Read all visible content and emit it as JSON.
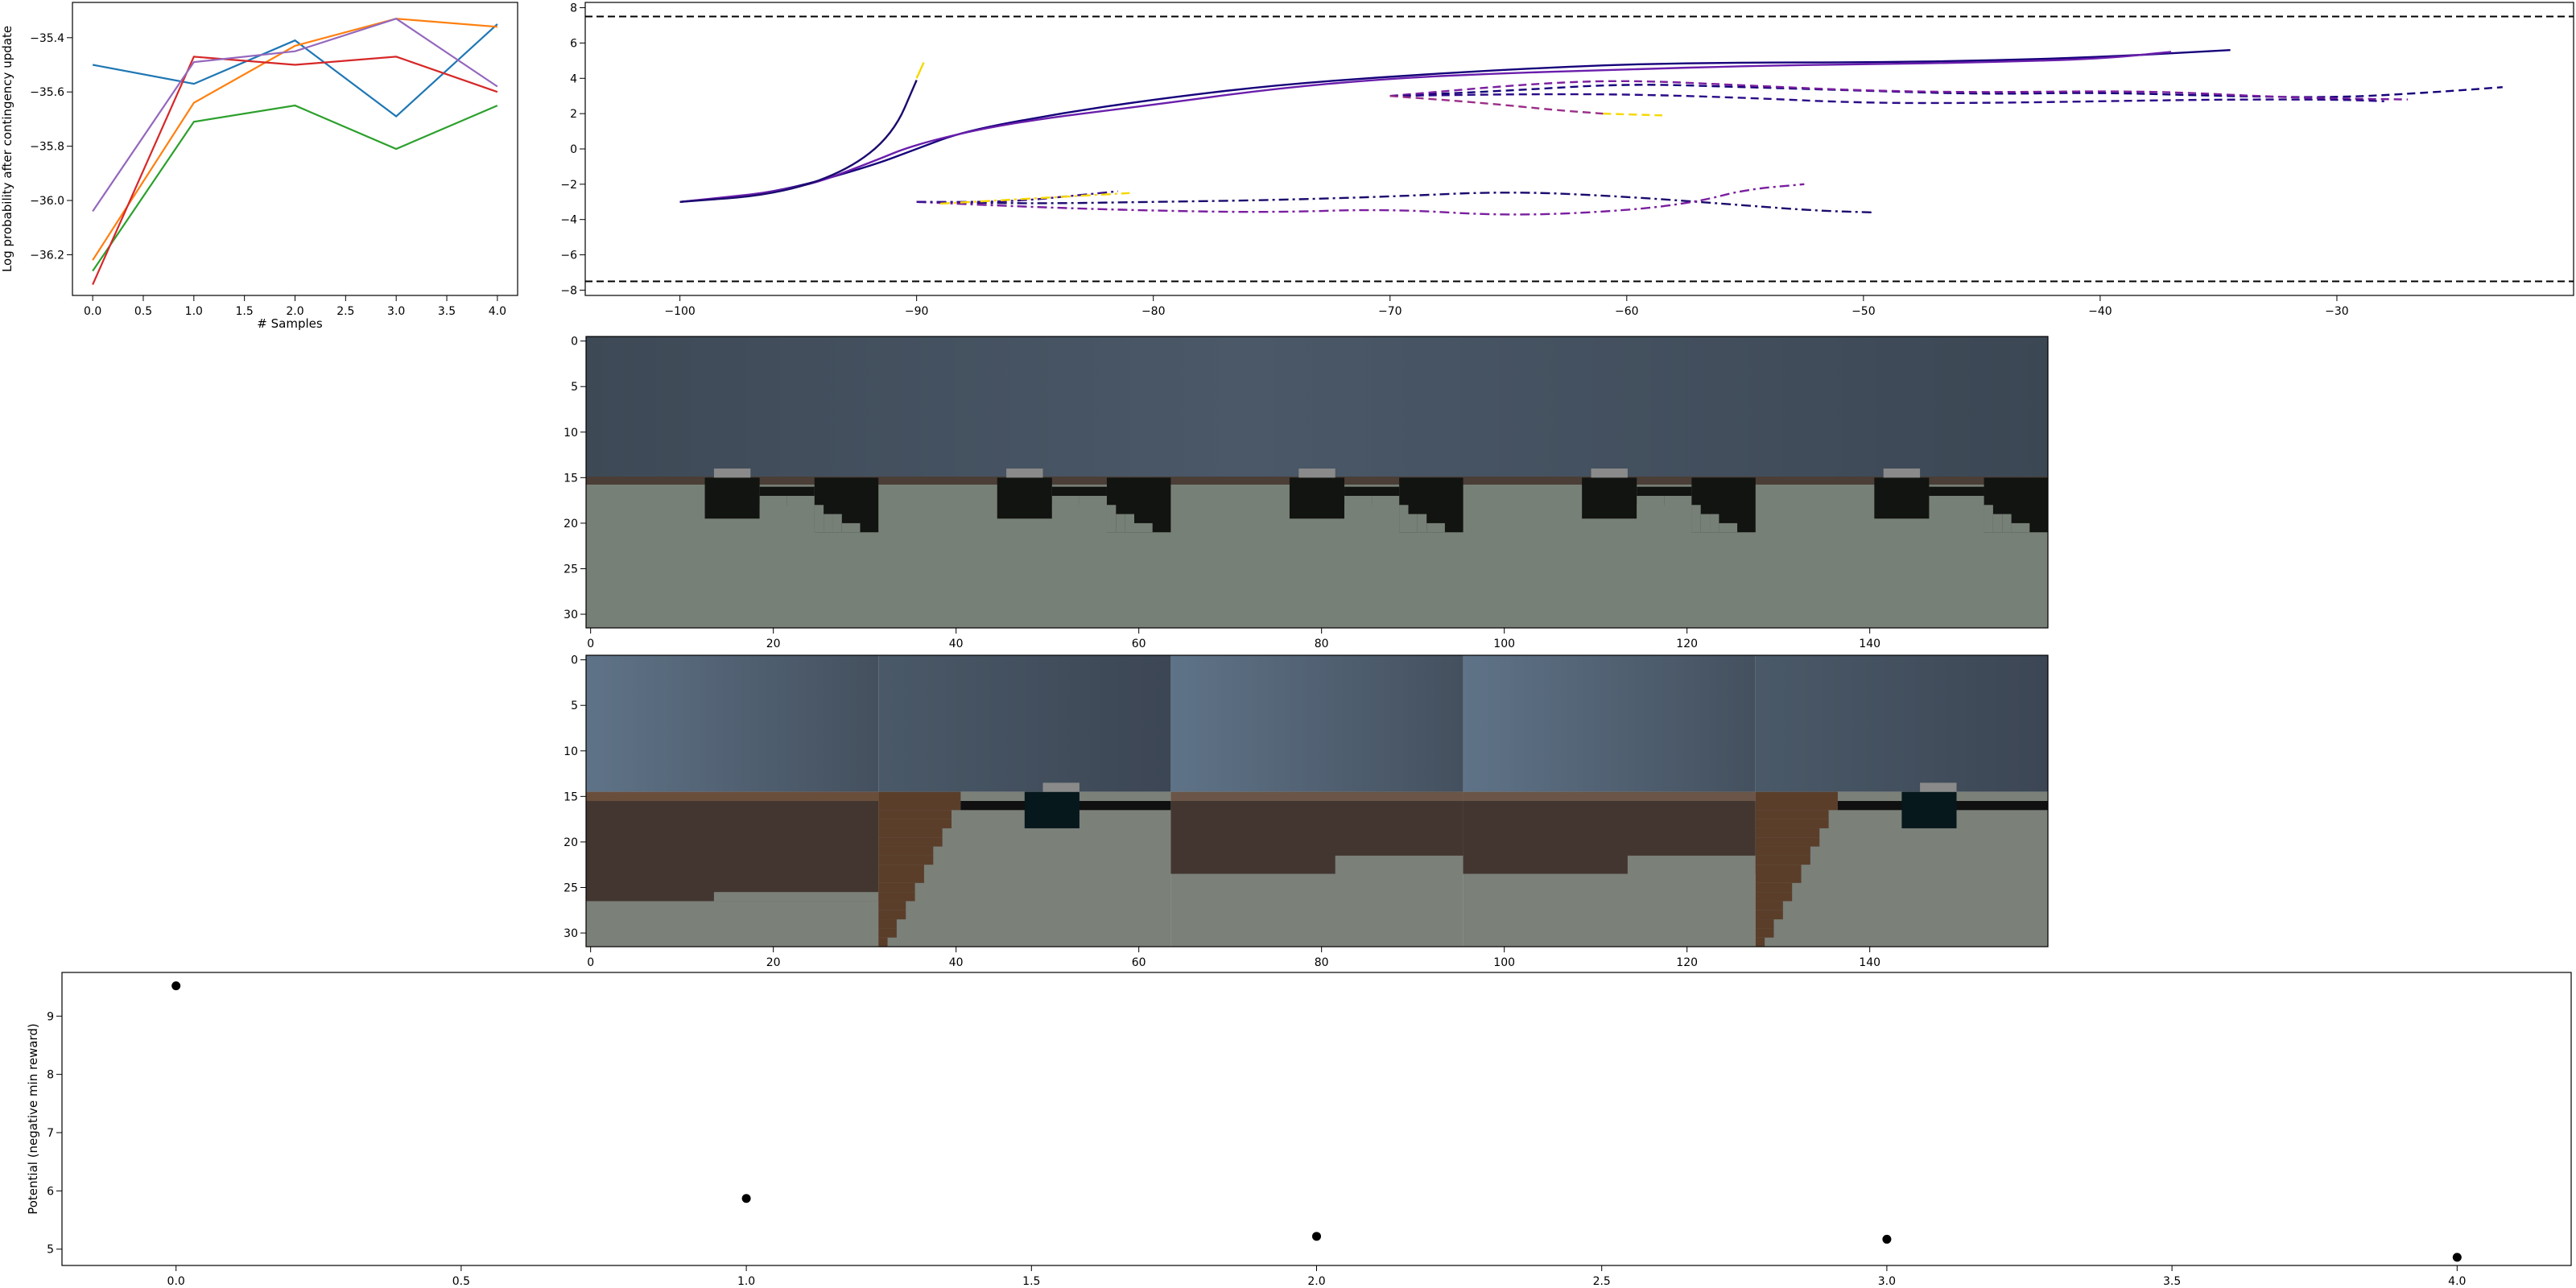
{
  "chart_data": [
    {
      "type": "line",
      "xlabel": "# Samples",
      "ylabel": "Log probability after contingency update",
      "xlim": [
        -0.2,
        4.2
      ],
      "ylim": [
        -36.35,
        -35.27
      ],
      "xticks": [
        "0.0",
        "0.5",
        "1.0",
        "1.5",
        "2.0",
        "2.5",
        "3.0",
        "3.5",
        "4.0"
      ],
      "yticks": [
        "-36.2",
        "-36.0",
        "-35.8",
        "-35.6",
        "-35.4"
      ],
      "x": [
        0,
        1,
        2,
        3,
        4
      ],
      "series": [
        {
          "color": "#1f77b4",
          "values": [
            -35.5,
            -35.57,
            -35.41,
            -35.69,
            -35.35
          ]
        },
        {
          "color": "#ff7f0e",
          "values": [
            -36.22,
            -35.64,
            -35.43,
            -35.33,
            -35.36
          ]
        },
        {
          "color": "#2ca02c",
          "values": [
            -36.26,
            -35.71,
            -35.65,
            -35.81,
            -35.65
          ]
        },
        {
          "color": "#d62728",
          "values": [
            -36.31,
            -35.47,
            -35.5,
            -35.47,
            -35.6
          ]
        },
        {
          "color": "#9467bd",
          "values": [
            -36.04,
            -35.49,
            -35.45,
            -35.33,
            -35.58
          ]
        }
      ]
    },
    {
      "type": "line",
      "xlim": [
        -104,
        -20
      ],
      "ylim": [
        -8.3,
        8.3
      ],
      "xticks": [
        "-100",
        "-90",
        "-80",
        "-70",
        "-60",
        "-50",
        "-40",
        "-30"
      ],
      "yticks": [
        "-8",
        "-6",
        "-4",
        "-2",
        "0",
        "2",
        "4",
        "6",
        "8"
      ],
      "boundaries": [
        7.5,
        -7.5
      ],
      "trajectories": [
        {
          "style": "solid",
          "color": "#15007a",
          "points": [
            [
              -100,
              -3
            ],
            [
              -96,
              -2.5
            ],
            [
              -92,
              -1
            ],
            [
              -90,
              0
            ],
            [
              -88,
              1
            ],
            [
              -84,
              2
            ],
            [
              -80,
              2.8
            ],
            [
              -75,
              3.6
            ],
            [
              -70,
              4.1
            ],
            [
              -65,
              4.5
            ],
            [
              -60,
              4.8
            ],
            [
              -55,
              4.9
            ],
            [
              -50,
              4.9
            ],
            [
              -45,
              5
            ],
            [
              -40,
              5.2
            ],
            [
              -34.5,
              5.6
            ]
          ]
        },
        {
          "style": "solid",
          "color": "#6a1eac",
          "points": [
            [
              -100,
              -3
            ],
            [
              -95,
              -2.3
            ],
            [
              -92,
              -0.8
            ],
            [
              -90,
              0.3
            ],
            [
              -86,
              1.5
            ],
            [
              -80,
              2.5
            ],
            [
              -75,
              3.4
            ],
            [
              -70,
              4
            ],
            [
              -65,
              4.3
            ],
            [
              -60,
              4.5
            ],
            [
              -55,
              4.7
            ],
            [
              -50,
              4.8
            ],
            [
              -45,
              4.9
            ],
            [
              -40,
              5.1
            ],
            [
              -37,
              5.5
            ]
          ]
        },
        {
          "style": "solid",
          "color": "#1a0a6e",
          "points": [
            [
              -100,
              -3
            ],
            [
              -96,
              -2.6
            ],
            [
              -93,
              -1.3
            ],
            [
              -91,
              0.8
            ],
            [
              -90,
              3.9
            ]
          ]
        },
        {
          "style": "solid",
          "color": "#f5d800",
          "points": [
            [
              -90,
              4
            ],
            [
              -89.7,
              4.9
            ]
          ]
        },
        {
          "style": "dashed",
          "color": "#15007a",
          "points": [
            [
              -70,
              3
            ],
            [
              -65,
              3.3
            ],
            [
              -60,
              3.7
            ],
            [
              -55,
              3.5
            ],
            [
              -50,
              3.3
            ],
            [
              -45,
              3.1
            ],
            [
              -40,
              3.2
            ],
            [
              -35,
              3
            ],
            [
              -30,
              2.9
            ],
            [
              -26,
              3.2
            ],
            [
              -23,
              3.5
            ]
          ]
        },
        {
          "style": "dashed",
          "color": "#7a1ea0",
          "points": [
            [
              -70,
              3
            ],
            [
              -64,
              3.7
            ],
            [
              -60,
              3.9
            ],
            [
              -55,
              3.6
            ],
            [
              -50,
              3.3
            ],
            [
              -45,
              3.2
            ],
            [
              -38,
              3.3
            ],
            [
              -32,
              2.9
            ],
            [
              -27,
              2.8
            ]
          ]
        },
        {
          "style": "dashed",
          "color": "#2a0a88",
          "points": [
            [
              -70,
              3
            ],
            [
              -65,
              3.1
            ],
            [
              -60,
              3.1
            ],
            [
              -55,
              2.9
            ],
            [
              -50,
              2.6
            ],
            [
              -45,
              2.6
            ],
            [
              -40,
              2.7
            ],
            [
              -35,
              2.8
            ],
            [
              -30,
              2.8
            ],
            [
              -28,
              2.7
            ]
          ]
        },
        {
          "style": "dashed",
          "color": "#9a2e88",
          "points": [
            [
              -70,
              3
            ],
            [
              -66,
              2.6
            ],
            [
              -63,
              2.2
            ],
            [
              -61,
              2
            ]
          ]
        },
        {
          "style": "dashed",
          "color": "#f5d800",
          "points": [
            [
              -61,
              2
            ],
            [
              -58.5,
              1.9
            ]
          ]
        },
        {
          "style": "dashdot",
          "color": "#1a0a6e",
          "points": [
            [
              -90,
              -3
            ],
            [
              -85,
              -3.1
            ],
            [
              -80,
              -3
            ],
            [
              -75,
              -2.9
            ],
            [
              -70,
              -2.7
            ],
            [
              -65,
              -2.4
            ],
            [
              -60,
              -2.7
            ],
            [
              -55,
              -3.2
            ],
            [
              -52,
              -3.5
            ],
            [
              -49.5,
              -3.6
            ]
          ]
        },
        {
          "style": "dashdot",
          "color": "#7a1ea0",
          "points": [
            [
              -90,
              -3
            ],
            [
              -85,
              -3.3
            ],
            [
              -80,
              -3.5
            ],
            [
              -75,
              -3.6
            ],
            [
              -70,
              -3.4
            ],
            [
              -65,
              -3.8
            ],
            [
              -60,
              -3.5
            ],
            [
              -57,
              -3
            ],
            [
              -55,
              -2.3
            ],
            [
              -52.5,
              -2
            ]
          ]
        },
        {
          "style": "dashdot",
          "color": "#3a1090",
          "points": [
            [
              -90,
              -3
            ],
            [
              -86,
              -3
            ],
            [
              -83,
              -2.6
            ],
            [
              -81.5,
              -2.4
            ]
          ]
        },
        {
          "style": "dashdot",
          "color": "#f5d800",
          "points": [
            [
              -89,
              -3.1
            ],
            [
              -85,
              -2.8
            ],
            [
              -81,
              -2.5
            ]
          ]
        }
      ]
    },
    {
      "type": "image",
      "xticks": [
        "0",
        "20",
        "40",
        "60",
        "80",
        "100",
        "120",
        "140"
      ],
      "yticks": [
        "0",
        "5",
        "10",
        "15",
        "20",
        "25",
        "30"
      ],
      "frames": 5
    },
    {
      "type": "image",
      "xticks": [
        "0",
        "20",
        "40",
        "60",
        "80",
        "100",
        "120",
        "140"
      ],
      "yticks": [
        "0",
        "5",
        "10",
        "15",
        "20",
        "25",
        "30"
      ],
      "frames": 5
    },
    {
      "type": "scatter",
      "ylabel": "Potential (negative min reward)",
      "xlim": [
        -0.2,
        4.2
      ],
      "ylim": [
        4.72,
        9.75
      ],
      "xticks": [
        "0.0",
        "0.5",
        "1.0",
        "1.5",
        "2.0",
        "2.5",
        "3.0",
        "3.5",
        "4.0"
      ],
      "yticks": [
        "5",
        "6",
        "7",
        "8",
        "9"
      ],
      "color": "#000000",
      "x": [
        0,
        1,
        2,
        3,
        4
      ],
      "y": [
        9.52,
        5.87,
        5.22,
        5.17,
        4.86
      ]
    }
  ]
}
